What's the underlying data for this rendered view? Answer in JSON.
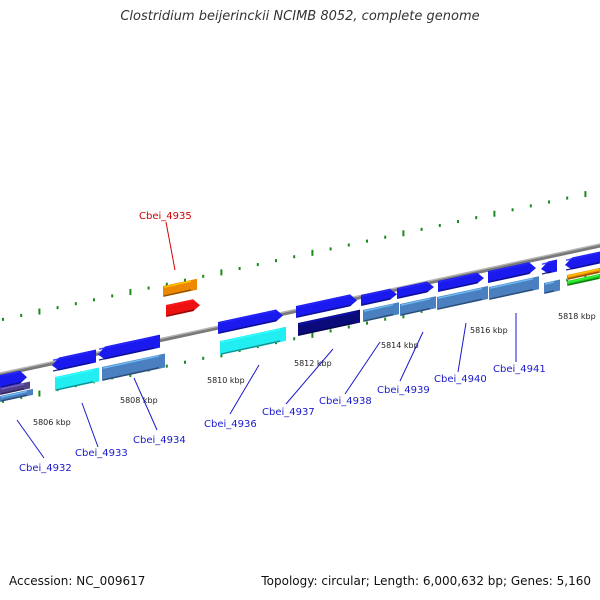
{
  "title": "Clostridium beijerinckii NCIMB 8052, complete genome",
  "footer": {
    "accession": "Accession: NC_009617",
    "summary": "Topology: circular; Length: 6,000,632 bp; Genes: 5,160"
  },
  "colors": {
    "backbone": "#7a7a7a",
    "tick": "#1a8a1a",
    "label_default": "#1a1acc",
    "label_highlight": "#cc0000",
    "leader_default": "#1a1acc",
    "leader_highlight": "#cc0000"
  },
  "scale_labels": [
    "5806 kbp",
    "5808 kbp",
    "5810 kbp",
    "5812 kbp",
    "5814 kbp",
    "5816 kbp",
    "5818 kbp"
  ],
  "genes": [
    {
      "id": "Cbei_4932",
      "color": "#1a1aee"
    },
    {
      "id": "Cbei_4933",
      "color": "#1a1aee"
    },
    {
      "id": "Cbei_4934",
      "color": "#1a1aee"
    },
    {
      "id": "Cbei_4935",
      "color": "#ee8800"
    },
    {
      "id": "Cbei_4936",
      "color": "#1a1aee"
    },
    {
      "id": "Cbei_4937",
      "color": "#1a1aee"
    },
    {
      "id": "Cbei_4938",
      "color": "#1a1aee"
    },
    {
      "id": "Cbei_4939",
      "color": "#1a1aee"
    },
    {
      "id": "Cbei_4940",
      "color": "#1a1aee"
    },
    {
      "id": "Cbei_4941",
      "color": "#1a1aee"
    }
  ]
}
